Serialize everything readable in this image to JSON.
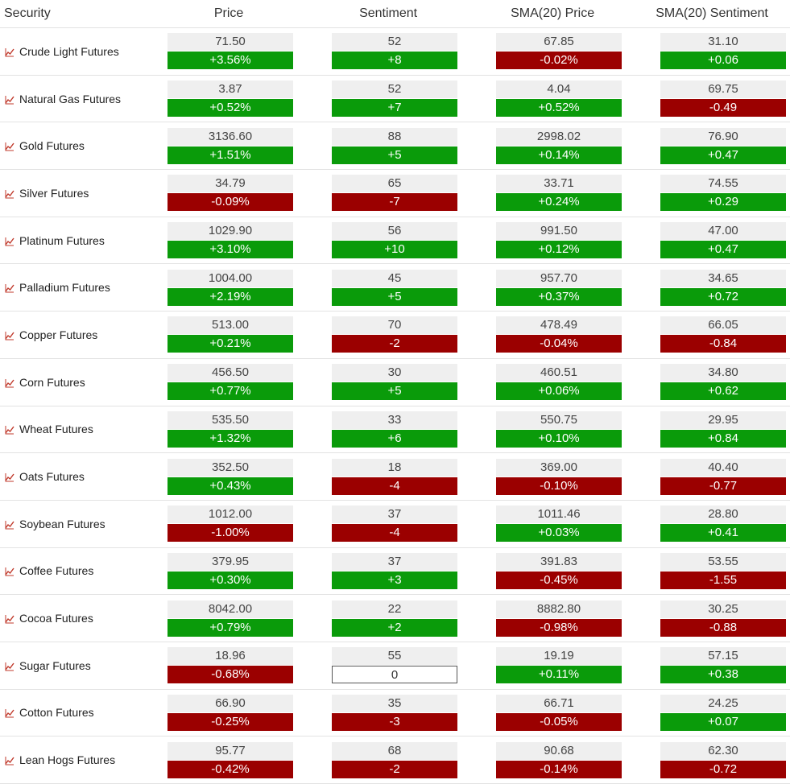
{
  "headers": {
    "security": "Security",
    "price": "Price",
    "sentiment": "Sentiment",
    "sma_price": "SMA(20) Price",
    "sma_sentiment": "SMA(20) Sentiment"
  },
  "colors": {
    "up": "#0a9b0a",
    "down": "#9b0000",
    "icon": "#c0392b"
  },
  "rows": [
    {
      "name": "Crude Light Futures",
      "price": "71.50",
      "price_chg": "+3.56%",
      "price_dir": "up",
      "sent": "52",
      "sent_chg": "+8",
      "sent_dir": "up",
      "sma_price": "67.85",
      "sma_price_chg": "-0.02%",
      "sma_price_dir": "down",
      "sma_sent": "31.10",
      "sma_sent_chg": "+0.06",
      "sma_sent_dir": "up"
    },
    {
      "name": "Natural Gas Futures",
      "price": "3.87",
      "price_chg": "+0.52%",
      "price_dir": "up",
      "sent": "52",
      "sent_chg": "+7",
      "sent_dir": "up",
      "sma_price": "4.04",
      "sma_price_chg": "+0.52%",
      "sma_price_dir": "up",
      "sma_sent": "69.75",
      "sma_sent_chg": "-0.49",
      "sma_sent_dir": "down"
    },
    {
      "name": "Gold Futures",
      "price": "3136.60",
      "price_chg": "+1.51%",
      "price_dir": "up",
      "sent": "88",
      "sent_chg": "+5",
      "sent_dir": "up",
      "sma_price": "2998.02",
      "sma_price_chg": "+0.14%",
      "sma_price_dir": "up",
      "sma_sent": "76.90",
      "sma_sent_chg": "+0.47",
      "sma_sent_dir": "up"
    },
    {
      "name": "Silver Futures",
      "price": "34.79",
      "price_chg": "-0.09%",
      "price_dir": "down",
      "sent": "65",
      "sent_chg": "-7",
      "sent_dir": "down",
      "sma_price": "33.71",
      "sma_price_chg": "+0.24%",
      "sma_price_dir": "up",
      "sma_sent": "74.55",
      "sma_sent_chg": "+0.29",
      "sma_sent_dir": "up"
    },
    {
      "name": "Platinum Futures",
      "price": "1029.90",
      "price_chg": "+3.10%",
      "price_dir": "up",
      "sent": "56",
      "sent_chg": "+10",
      "sent_dir": "up",
      "sma_price": "991.50",
      "sma_price_chg": "+0.12%",
      "sma_price_dir": "up",
      "sma_sent": "47.00",
      "sma_sent_chg": "+0.47",
      "sma_sent_dir": "up"
    },
    {
      "name": "Palladium Futures",
      "price": "1004.00",
      "price_chg": "+2.19%",
      "price_dir": "up",
      "sent": "45",
      "sent_chg": "+5",
      "sent_dir": "up",
      "sma_price": "957.70",
      "sma_price_chg": "+0.37%",
      "sma_price_dir": "up",
      "sma_sent": "34.65",
      "sma_sent_chg": "+0.72",
      "sma_sent_dir": "up"
    },
    {
      "name": "Copper Futures",
      "price": "513.00",
      "price_chg": "+0.21%",
      "price_dir": "up",
      "sent": "70",
      "sent_chg": "-2",
      "sent_dir": "down",
      "sma_price": "478.49",
      "sma_price_chg": "-0.04%",
      "sma_price_dir": "down",
      "sma_sent": "66.05",
      "sma_sent_chg": "-0.84",
      "sma_sent_dir": "down"
    },
    {
      "name": "Corn Futures",
      "price": "456.50",
      "price_chg": "+0.77%",
      "price_dir": "up",
      "sent": "30",
      "sent_chg": "+5",
      "sent_dir": "up",
      "sma_price": "460.51",
      "sma_price_chg": "+0.06%",
      "sma_price_dir": "up",
      "sma_sent": "34.80",
      "sma_sent_chg": "+0.62",
      "sma_sent_dir": "up"
    },
    {
      "name": "Wheat Futures",
      "price": "535.50",
      "price_chg": "+1.32%",
      "price_dir": "up",
      "sent": "33",
      "sent_chg": "+6",
      "sent_dir": "up",
      "sma_price": "550.75",
      "sma_price_chg": "+0.10%",
      "sma_price_dir": "up",
      "sma_sent": "29.95",
      "sma_sent_chg": "+0.84",
      "sma_sent_dir": "up"
    },
    {
      "name": "Oats Futures",
      "price": "352.50",
      "price_chg": "+0.43%",
      "price_dir": "up",
      "sent": "18",
      "sent_chg": "-4",
      "sent_dir": "down",
      "sma_price": "369.00",
      "sma_price_chg": "-0.10%",
      "sma_price_dir": "down",
      "sma_sent": "40.40",
      "sma_sent_chg": "-0.77",
      "sma_sent_dir": "down"
    },
    {
      "name": "Soybean Futures",
      "price": "1012.00",
      "price_chg": "-1.00%",
      "price_dir": "down",
      "sent": "37",
      "sent_chg": "-4",
      "sent_dir": "down",
      "sma_price": "1011.46",
      "sma_price_chg": "+0.03%",
      "sma_price_dir": "up",
      "sma_sent": "28.80",
      "sma_sent_chg": "+0.41",
      "sma_sent_dir": "up"
    },
    {
      "name": "Coffee Futures",
      "price": "379.95",
      "price_chg": "+0.30%",
      "price_dir": "up",
      "sent": "37",
      "sent_chg": "+3",
      "sent_dir": "up",
      "sma_price": "391.83",
      "sma_price_chg": "-0.45%",
      "sma_price_dir": "down",
      "sma_sent": "53.55",
      "sma_sent_chg": "-1.55",
      "sma_sent_dir": "down"
    },
    {
      "name": "Cocoa Futures",
      "price": "8042.00",
      "price_chg": "+0.79%",
      "price_dir": "up",
      "sent": "22",
      "sent_chg": "+2",
      "sent_dir": "up",
      "sma_price": "8882.80",
      "sma_price_chg": "-0.98%",
      "sma_price_dir": "down",
      "sma_sent": "30.25",
      "sma_sent_chg": "-0.88",
      "sma_sent_dir": "down"
    },
    {
      "name": "Sugar Futures",
      "price": "18.96",
      "price_chg": "-0.68%",
      "price_dir": "down",
      "sent": "55",
      "sent_chg": "0",
      "sent_dir": "flat",
      "sma_price": "19.19",
      "sma_price_chg": "+0.11%",
      "sma_price_dir": "up",
      "sma_sent": "57.15",
      "sma_sent_chg": "+0.38",
      "sma_sent_dir": "up"
    },
    {
      "name": "Cotton Futures",
      "price": "66.90",
      "price_chg": "-0.25%",
      "price_dir": "down",
      "sent": "35",
      "sent_chg": "-3",
      "sent_dir": "down",
      "sma_price": "66.71",
      "sma_price_chg": "-0.05%",
      "sma_price_dir": "down",
      "sma_sent": "24.25",
      "sma_sent_chg": "+0.07",
      "sma_sent_dir": "up"
    },
    {
      "name": "Lean Hogs Futures",
      "price": "95.77",
      "price_chg": "-0.42%",
      "price_dir": "down",
      "sent": "68",
      "sent_chg": "-2",
      "sent_dir": "down",
      "sma_price": "90.68",
      "sma_price_chg": "-0.14%",
      "sma_price_dir": "down",
      "sma_sent": "62.30",
      "sma_sent_chg": "-0.72",
      "sma_sent_dir": "down"
    }
  ]
}
